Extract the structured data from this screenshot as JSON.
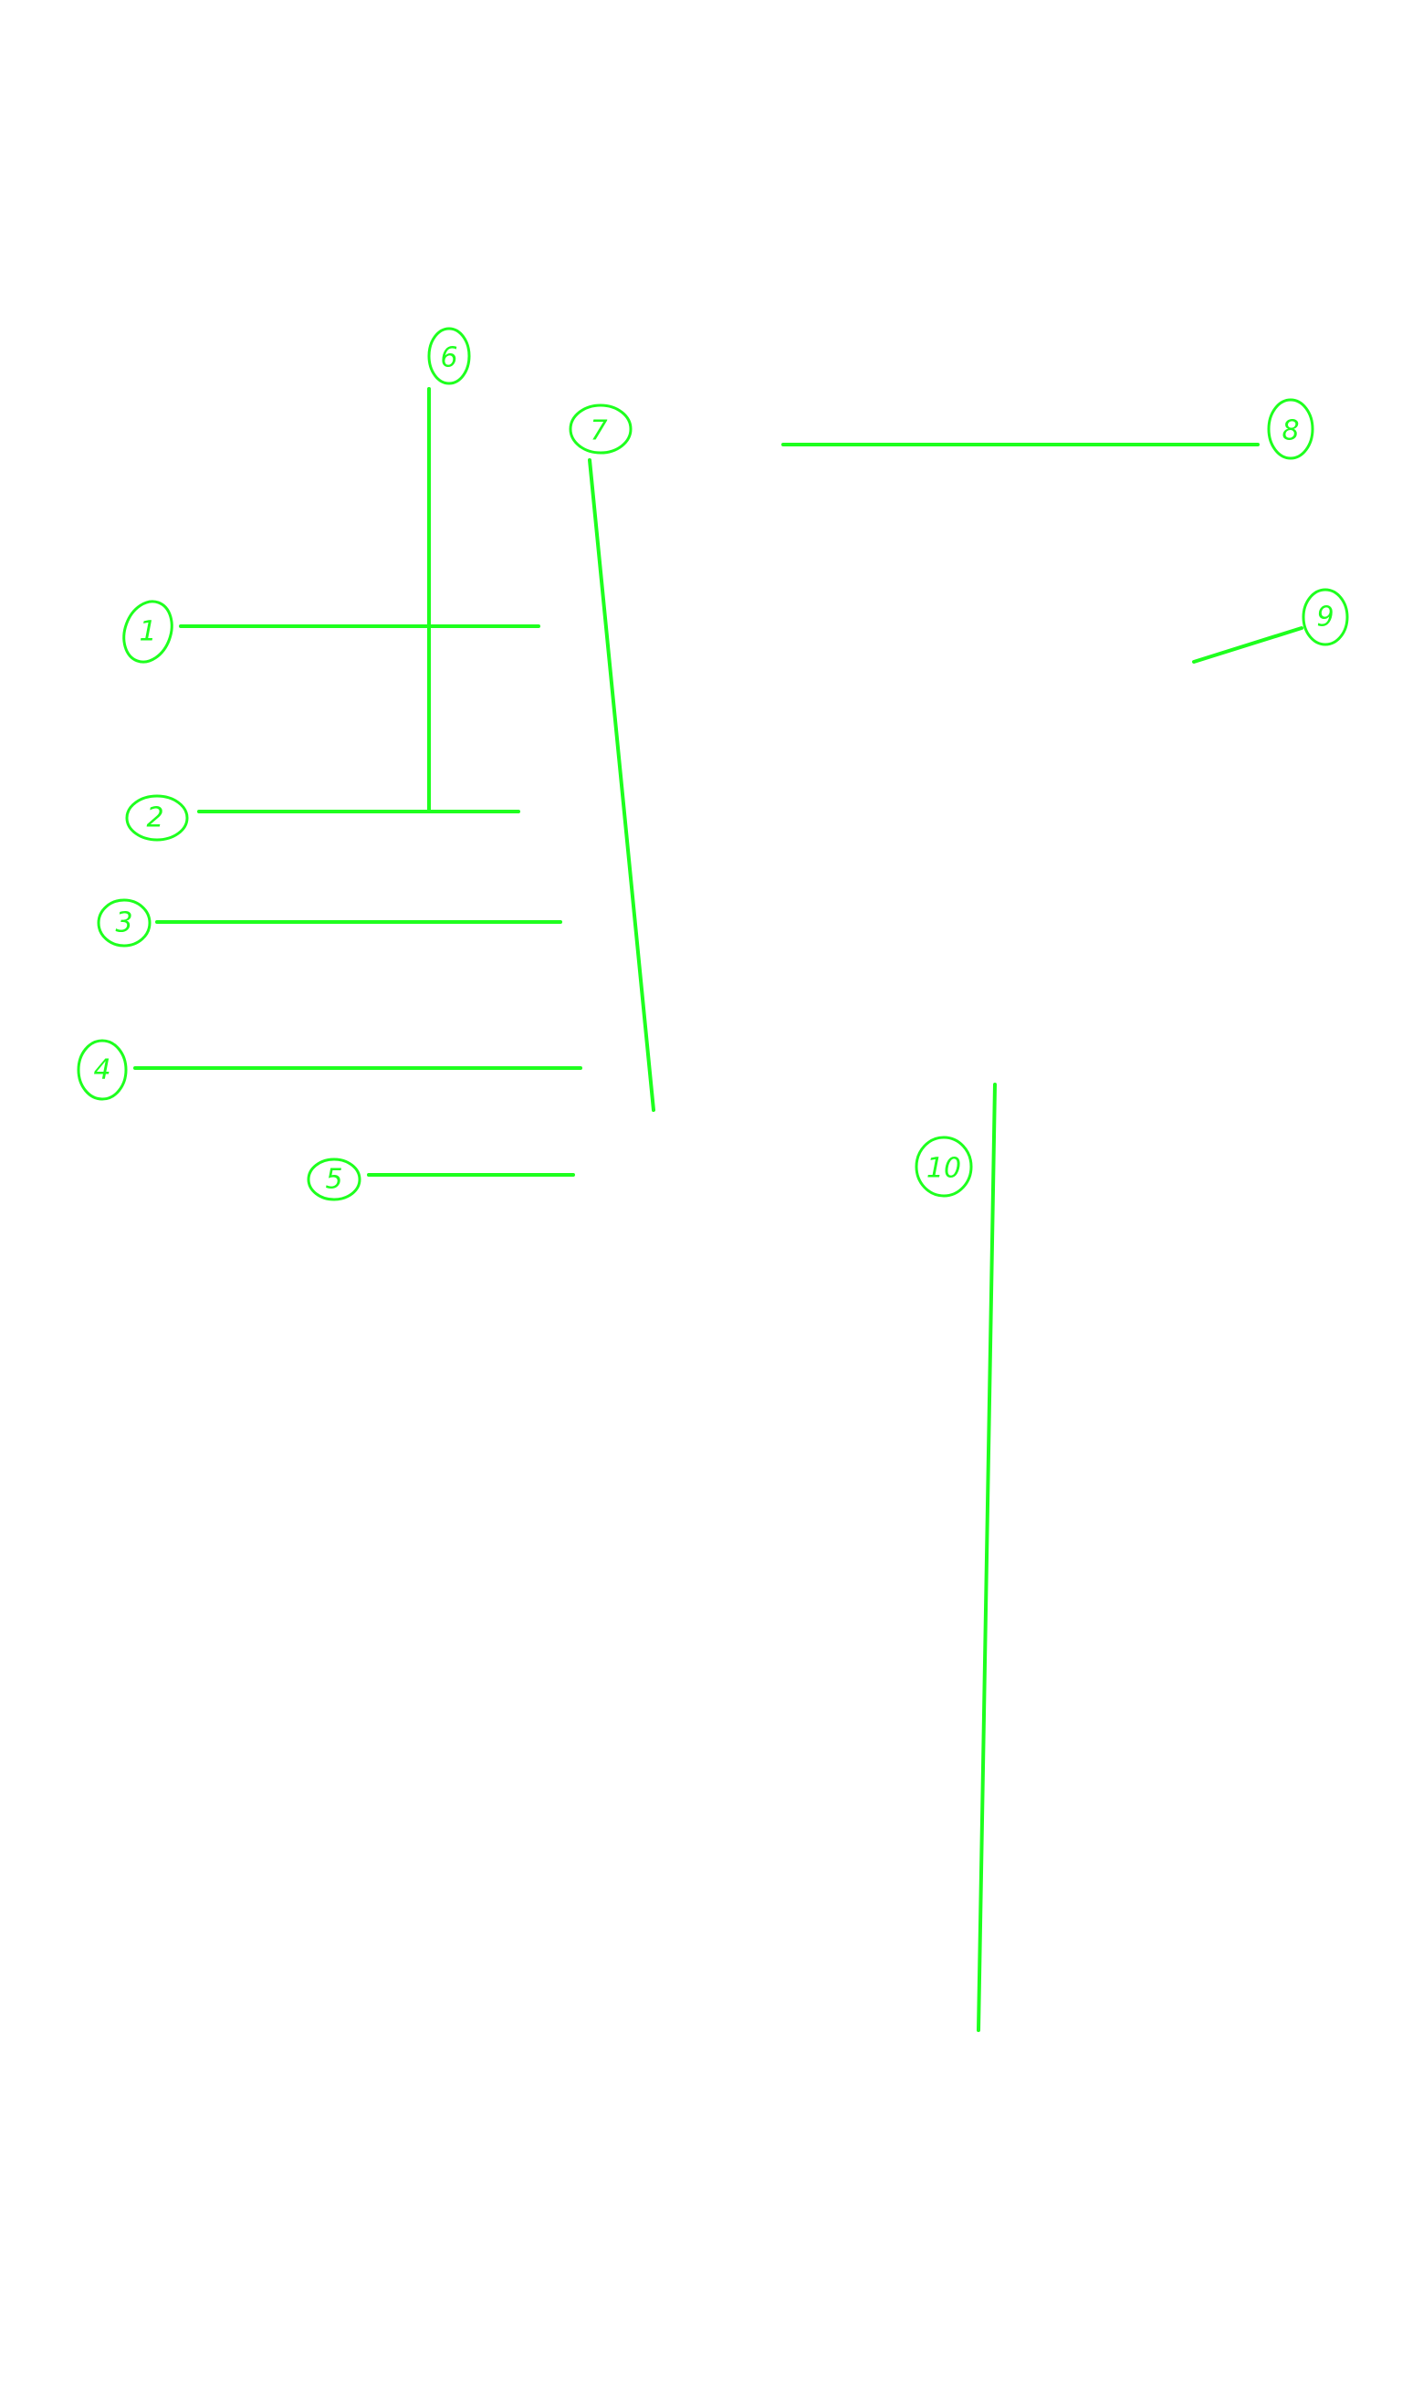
{
  "annotation_color": "#1EFF1E",
  "background_color": "#FFFFFF",
  "callouts": [
    {
      "id": "1",
      "label": "1"
    },
    {
      "id": "2",
      "label": "2"
    },
    {
      "id": "3",
      "label": "3"
    },
    {
      "id": "4",
      "label": "4"
    },
    {
      "id": "5",
      "label": "5"
    },
    {
      "id": "6",
      "label": "6"
    },
    {
      "id": "7",
      "label": "7"
    },
    {
      "id": "8",
      "label": "8"
    },
    {
      "id": "9",
      "label": "9"
    },
    {
      "id": "10",
      "label": "10"
    }
  ]
}
